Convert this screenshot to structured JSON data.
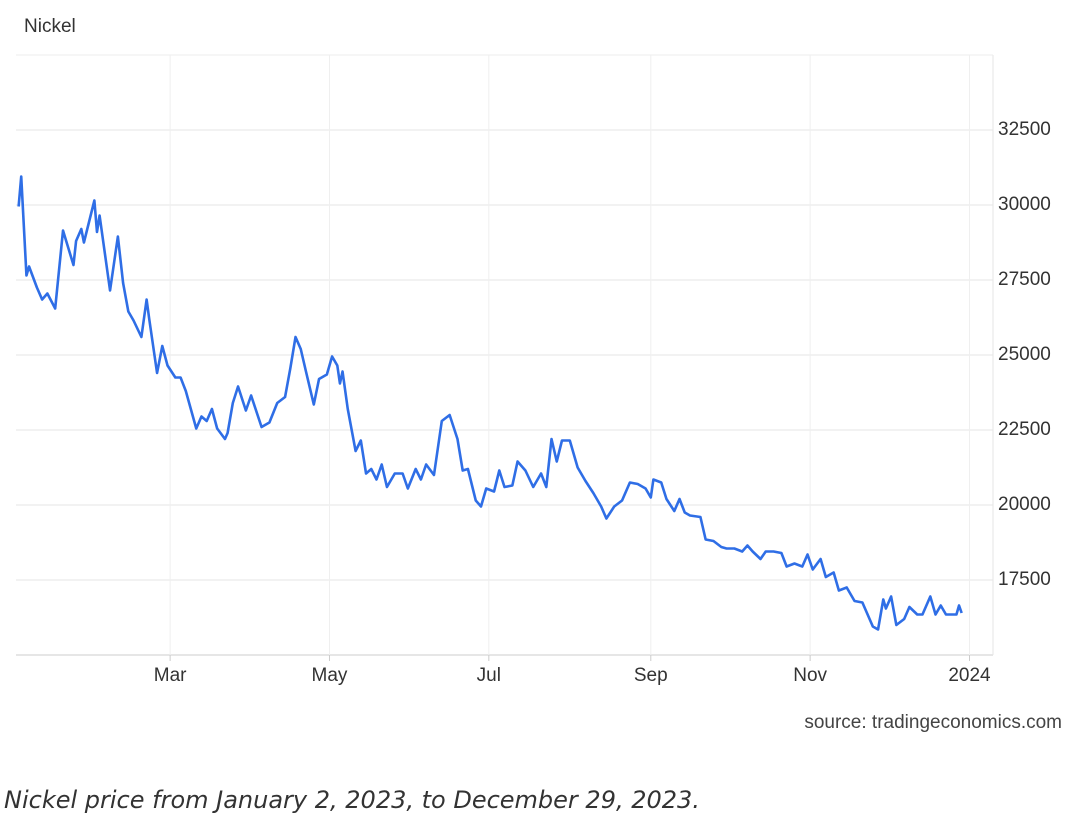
{
  "chart_data": {
    "type": "line",
    "title": "Nickel",
    "source": "source: tradingeconomics.com",
    "caption": "Nickel price from January 2, 2023, to December 29, 2023.",
    "xlim": [
      "2023-01-01",
      "2024-01-10"
    ],
    "xticks": [
      {
        "value": "2023-03-01",
        "label": "Mar"
      },
      {
        "value": "2023-05-01",
        "label": "May"
      },
      {
        "value": "2023-07-01",
        "label": "Jul"
      },
      {
        "value": "2023-09-01",
        "label": "Sep"
      },
      {
        "value": "2023-11-01",
        "label": "Nov"
      },
      {
        "value": "2024-01-01",
        "label": "2024"
      }
    ],
    "ylim": [
      15000,
      35000
    ],
    "yticks": [
      17500,
      20000,
      22500,
      25000,
      27500,
      30000,
      32500
    ],
    "grid": true,
    "x": [
      "2023-01-02",
      "2023-01-03",
      "2023-01-05",
      "2023-01-06",
      "2023-01-09",
      "2023-01-11",
      "2023-01-13",
      "2023-01-16",
      "2023-01-19",
      "2023-01-23",
      "2023-01-24",
      "2023-01-26",
      "2023-01-27",
      "2023-01-31",
      "2023-02-01",
      "2023-02-02",
      "2023-02-06",
      "2023-02-09",
      "2023-02-11",
      "2023-02-13",
      "2023-02-15",
      "2023-02-18",
      "2023-02-20",
      "2023-02-21",
      "2023-02-24",
      "2023-02-26",
      "2023-02-28",
      "2023-03-03",
      "2023-03-05",
      "2023-03-07",
      "2023-03-11",
      "2023-03-13",
      "2023-03-15",
      "2023-03-17",
      "2023-03-19",
      "2023-03-22",
      "2023-03-23",
      "2023-03-25",
      "2023-03-27",
      "2023-03-30",
      "2023-04-01",
      "2023-04-05",
      "2023-04-08",
      "2023-04-11",
      "2023-04-14",
      "2023-04-16",
      "2023-04-18",
      "2023-04-20",
      "2023-04-22",
      "2023-04-25",
      "2023-04-27",
      "2023-04-30",
      "2023-05-02",
      "2023-05-04",
      "2023-05-05",
      "2023-05-06",
      "2023-05-08",
      "2023-05-11",
      "2023-05-13",
      "2023-05-15",
      "2023-05-17",
      "2023-05-19",
      "2023-05-21",
      "2023-05-23",
      "2023-05-26",
      "2023-05-29",
      "2023-05-31",
      "2023-06-03",
      "2023-06-05",
      "2023-06-07",
      "2023-06-10",
      "2023-06-13",
      "2023-06-16",
      "2023-06-19",
      "2023-06-21",
      "2023-06-23",
      "2023-06-26",
      "2023-06-28",
      "2023-06-30",
      "2023-07-03",
      "2023-07-05",
      "2023-07-07",
      "2023-07-10",
      "2023-07-12",
      "2023-07-15",
      "2023-07-18",
      "2023-07-21",
      "2023-07-23",
      "2023-07-25",
      "2023-07-27",
      "2023-07-29",
      "2023-08-01",
      "2023-08-04",
      "2023-08-07",
      "2023-08-10",
      "2023-08-13",
      "2023-08-15",
      "2023-08-18",
      "2023-08-21",
      "2023-08-24",
      "2023-08-27",
      "2023-08-30",
      "2023-09-01",
      "2023-09-02",
      "2023-09-05",
      "2023-09-07",
      "2023-09-10",
      "2023-09-12",
      "2023-09-14",
      "2023-09-16",
      "2023-09-20",
      "2023-09-22",
      "2023-09-25",
      "2023-09-28",
      "2023-09-30",
      "2023-10-03",
      "2023-10-06",
      "2023-10-08",
      "2023-10-10",
      "2023-10-13",
      "2023-10-15",
      "2023-10-18",
      "2023-10-21",
      "2023-10-23",
      "2023-10-26",
      "2023-10-29",
      "2023-10-31",
      "2023-11-02",
      "2023-11-05",
      "2023-11-07",
      "2023-11-10",
      "2023-11-12",
      "2023-11-15",
      "2023-11-18",
      "2023-11-21",
      "2023-11-23",
      "2023-11-25",
      "2023-11-27",
      "2023-11-29",
      "2023-11-30",
      "2023-12-02",
      "2023-12-04",
      "2023-12-07",
      "2023-12-09",
      "2023-12-12",
      "2023-12-14",
      "2023-12-17",
      "2023-12-19",
      "2023-12-21",
      "2023-12-23",
      "2023-12-27",
      "2023-12-28",
      "2023-12-29"
    ],
    "series": [
      {
        "name": "Nickel",
        "color": "#2f6ee6",
        "values": [
          29950,
          30950,
          27650,
          27950,
          27250,
          26850,
          27050,
          26550,
          29150,
          28000,
          28800,
          29200,
          28750,
          30150,
          29100,
          29650,
          27150,
          28950,
          27400,
          26450,
          26150,
          25600,
          26850,
          26200,
          24400,
          25300,
          24650,
          24250,
          24250,
          23800,
          22550,
          22950,
          22800,
          23200,
          22550,
          22200,
          22400,
          23400,
          23950,
          23150,
          23650,
          22600,
          22750,
          23400,
          23600,
          24550,
          25600,
          25200,
          24450,
          23350,
          24200,
          24350,
          24950,
          24650,
          24050,
          24450,
          23200,
          21800,
          22150,
          21050,
          21200,
          20850,
          21350,
          20600,
          21050,
          21050,
          20550,
          21200,
          20850,
          21350,
          21000,
          22800,
          23000,
          22200,
          21150,
          21200,
          20150,
          19950,
          20550,
          20450,
          21150,
          20600,
          20650,
          21450,
          21150,
          20600,
          21050,
          20600,
          22200,
          21450,
          22150,
          22150,
          21250,
          20800,
          20400,
          19950,
          19550,
          19950,
          20150,
          20750,
          20700,
          20550,
          20250,
          20850,
          20750,
          20200,
          19800,
          20200,
          19750,
          19650,
          19600,
          18850,
          18800,
          18600,
          18550,
          18550,
          18450,
          18650,
          18450,
          18200,
          18450,
          18450,
          18400,
          17950,
          18050,
          17950,
          18350,
          17850,
          18200,
          17600,
          17750,
          17150,
          17250,
          16800,
          16750,
          16350,
          15950,
          15850,
          16850,
          16550,
          16950,
          16000,
          16200,
          16600,
          16350,
          16350,
          16950,
          16350,
          16650,
          16350,
          16350,
          16650,
          16400
        ]
      }
    ]
  }
}
